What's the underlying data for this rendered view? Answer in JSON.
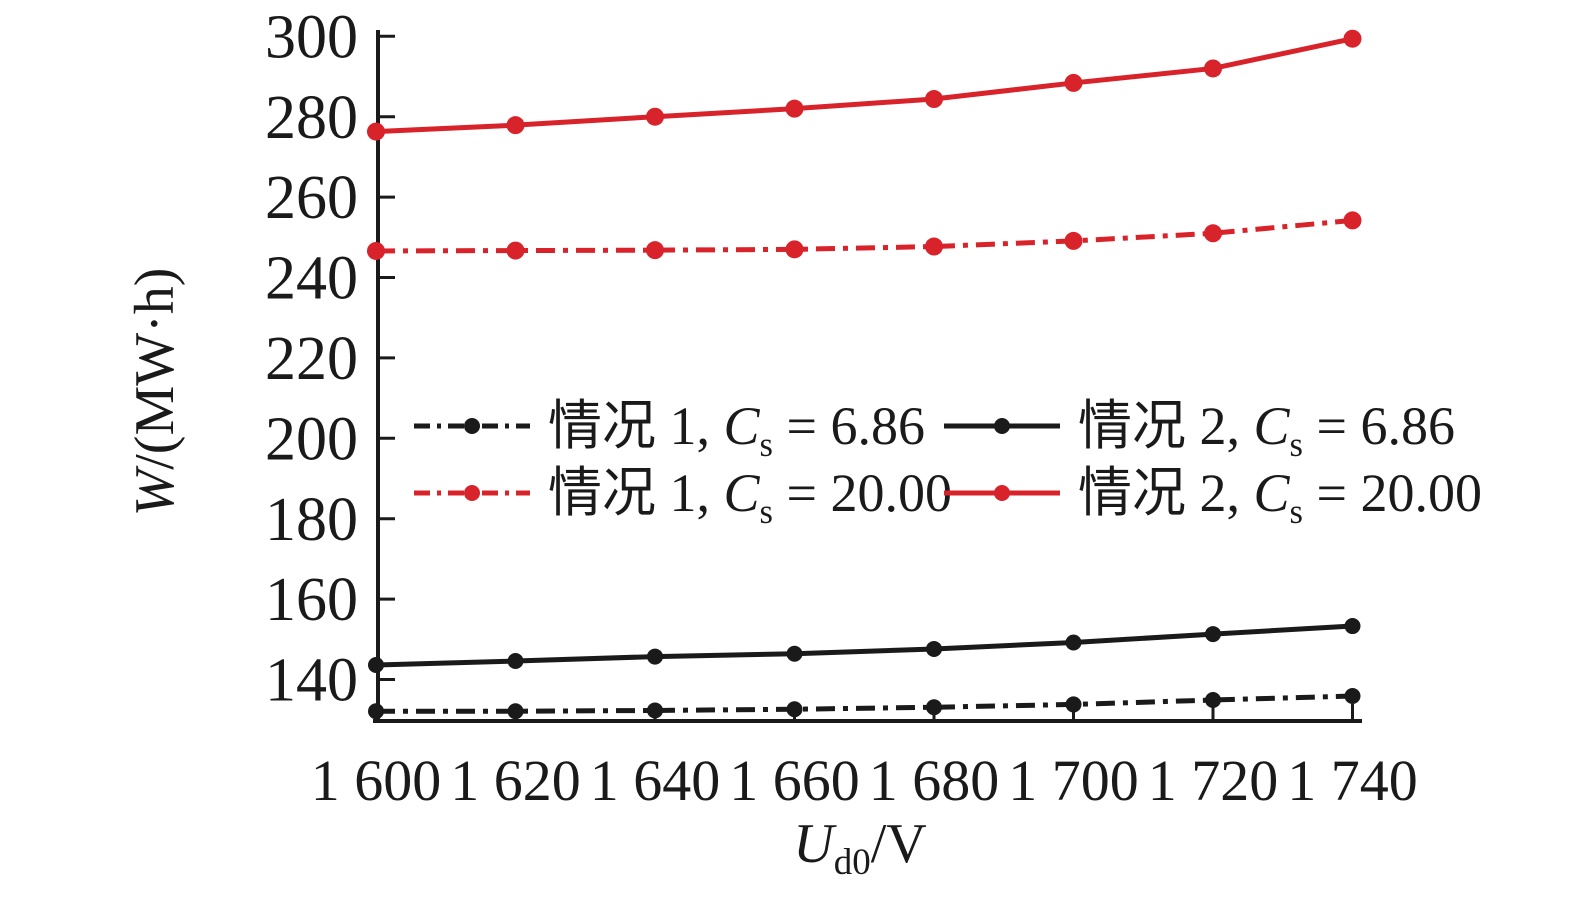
{
  "figure": {
    "xlabel": {
      "var": "U",
      "sub": "d0",
      "rest": "/V"
    },
    "ylabel": {
      "var": "W",
      "rest": "/(MW·h)"
    }
  },
  "colors": {
    "ink": "#1a1a1a",
    "red": "#d8232a",
    "black_series": "#1a1a1a"
  },
  "legend": {
    "position": "inside-center-left",
    "items": [
      {
        "prefix": "情况 1, ",
        "cvar": "C",
        "csub": "s",
        "value": " = 6.86",
        "color": "#1a1a1a",
        "style": "dashdot"
      },
      {
        "prefix": "情况 2, ",
        "cvar": "C",
        "csub": "s",
        "value": " = 6.86",
        "color": "#1a1a1a",
        "style": "solid"
      },
      {
        "prefix": "情况 1, ",
        "cvar": "C",
        "csub": "s",
        "value": " = 20.00",
        "color": "#d8232a",
        "style": "dashdot"
      },
      {
        "prefix": "情况 2, ",
        "cvar": "C",
        "csub": "s",
        "value": " = 20.00",
        "color": "#d8232a",
        "style": "solid"
      }
    ]
  },
  "chart_data": {
    "type": "line",
    "title": "",
    "xlabel": "U_d0/V",
    "ylabel": "W/(MW·h)",
    "grid": false,
    "legend_position": "inside center-left, 2x2",
    "x": [
      1600,
      1620,
      1640,
      1660,
      1680,
      1700,
      1720,
      1740
    ],
    "x_tick_labels": [
      "1 600",
      "1 620",
      "1 640",
      "1 660",
      "1 680",
      "1 700",
      "1 720",
      "1 740"
    ],
    "xlim": [
      1600,
      1740
    ],
    "y_ticks": [
      140,
      160,
      180,
      200,
      220,
      240,
      260,
      280,
      300
    ],
    "y_tick_labels": [
      "140",
      "160",
      "180",
      "200",
      "220",
      "240",
      "260",
      "280",
      "300"
    ],
    "ylim": [
      130,
      300
    ],
    "series": [
      {
        "name": "情况 1, Cs = 6.86",
        "color": "#1a1a1a",
        "line": "dashdot",
        "marker": "circle",
        "values": [
          132.1,
          132.1,
          132.3,
          132.6,
          133.1,
          133.8,
          134.9,
          135.9
        ]
      },
      {
        "name": "情况 2, Cs = 6.86",
        "color": "#1a1a1a",
        "line": "solid",
        "marker": "circle",
        "values": [
          143.6,
          144.6,
          145.7,
          146.4,
          147.6,
          149.2,
          151.3,
          153.3
        ]
      },
      {
        "name": "情况 1, Cs = 20.00",
        "color": "#d8232a",
        "line": "dashdot",
        "marker": "circle",
        "values": [
          246.6,
          246.7,
          246.8,
          247.0,
          247.7,
          249.1,
          251.0,
          254.2
        ]
      },
      {
        "name": "情况 2, Cs = 20.00",
        "color": "#d8232a",
        "line": "solid",
        "marker": "circle",
        "values": [
          276.3,
          277.9,
          280.0,
          282.0,
          284.4,
          288.4,
          292.0,
          299.4
        ]
      }
    ]
  }
}
